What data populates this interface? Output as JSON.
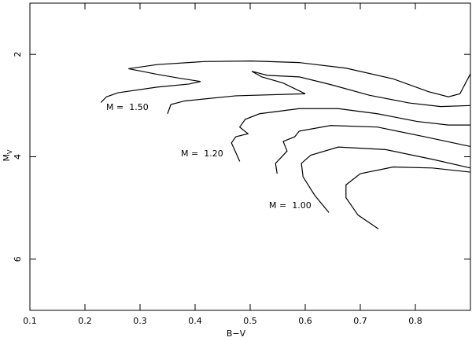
{
  "chart_data": {
    "type": "line",
    "xlabel": "B−V",
    "ylabel": "M",
    "ylabel_sub": "V",
    "xlim": [
      0.1,
      0.9
    ],
    "ylim": [
      7,
      1
    ],
    "xticks": [
      0.1,
      0.2,
      0.3,
      0.4,
      0.5,
      0.6,
      0.7,
      0.8
    ],
    "yticks": [
      2,
      4,
      6
    ],
    "color": "#000000",
    "annotations": [
      "M =  1.50",
      "M =  1.20",
      "M =  1.00"
    ],
    "series": [
      {
        "x": [
          0.229,
          0.239,
          0.26,
          0.331,
          0.389,
          0.41,
          0.374,
          0.331,
          0.279,
          0.331,
          0.417,
          0.503,
          0.589,
          0.674,
          0.76,
          0.824,
          0.86,
          0.881,
          0.9
        ],
        "values": [
          2.94,
          2.83,
          2.75,
          2.64,
          2.58,
          2.53,
          2.47,
          2.39,
          2.28,
          2.2,
          2.14,
          2.13,
          2.16,
          2.27,
          2.48,
          2.73,
          2.83,
          2.77,
          2.38
        ]
      },
      {
        "x": [
          0.35,
          0.356,
          0.381,
          0.474,
          0.6,
          0.56,
          0.521,
          0.503,
          0.531,
          0.589,
          0.646,
          0.717,
          0.789,
          0.846,
          0.9
        ],
        "values": [
          3.16,
          2.98,
          2.91,
          2.81,
          2.77,
          2.56,
          2.44,
          2.33,
          2.41,
          2.44,
          2.59,
          2.8,
          2.95,
          3.02,
          3.0
        ]
      },
      {
        "x": [
          0.481,
          0.474,
          0.466,
          0.474,
          0.496,
          0.481,
          0.491,
          0.517,
          0.589,
          0.66,
          0.731,
          0.803,
          0.86,
          0.9
        ],
        "values": [
          4.09,
          3.92,
          3.73,
          3.61,
          3.55,
          3.42,
          3.27,
          3.16,
          3.06,
          3.06,
          3.16,
          3.31,
          3.38,
          3.38
        ]
      },
      {
        "x": [
          0.549,
          0.546,
          0.567,
          0.56,
          0.581,
          0.589,
          0.646,
          0.731,
          0.817,
          0.9
        ],
        "values": [
          4.33,
          4.13,
          3.89,
          3.7,
          3.61,
          3.5,
          3.39,
          3.42,
          3.61,
          3.8
        ]
      },
      {
        "x": [
          0.643,
          0.617,
          0.596,
          0.593,
          0.61,
          0.66,
          0.746,
          0.831,
          0.9
        ],
        "values": [
          5.09,
          4.75,
          4.39,
          4.13,
          3.97,
          3.81,
          3.86,
          4.05,
          4.22
        ]
      },
      {
        "x": [
          0.733,
          0.696,
          0.674,
          0.674,
          0.7,
          0.76,
          0.831,
          0.9
        ],
        "values": [
          5.41,
          5.14,
          4.8,
          4.55,
          4.33,
          4.2,
          4.22,
          4.3
        ]
      }
    ]
  }
}
